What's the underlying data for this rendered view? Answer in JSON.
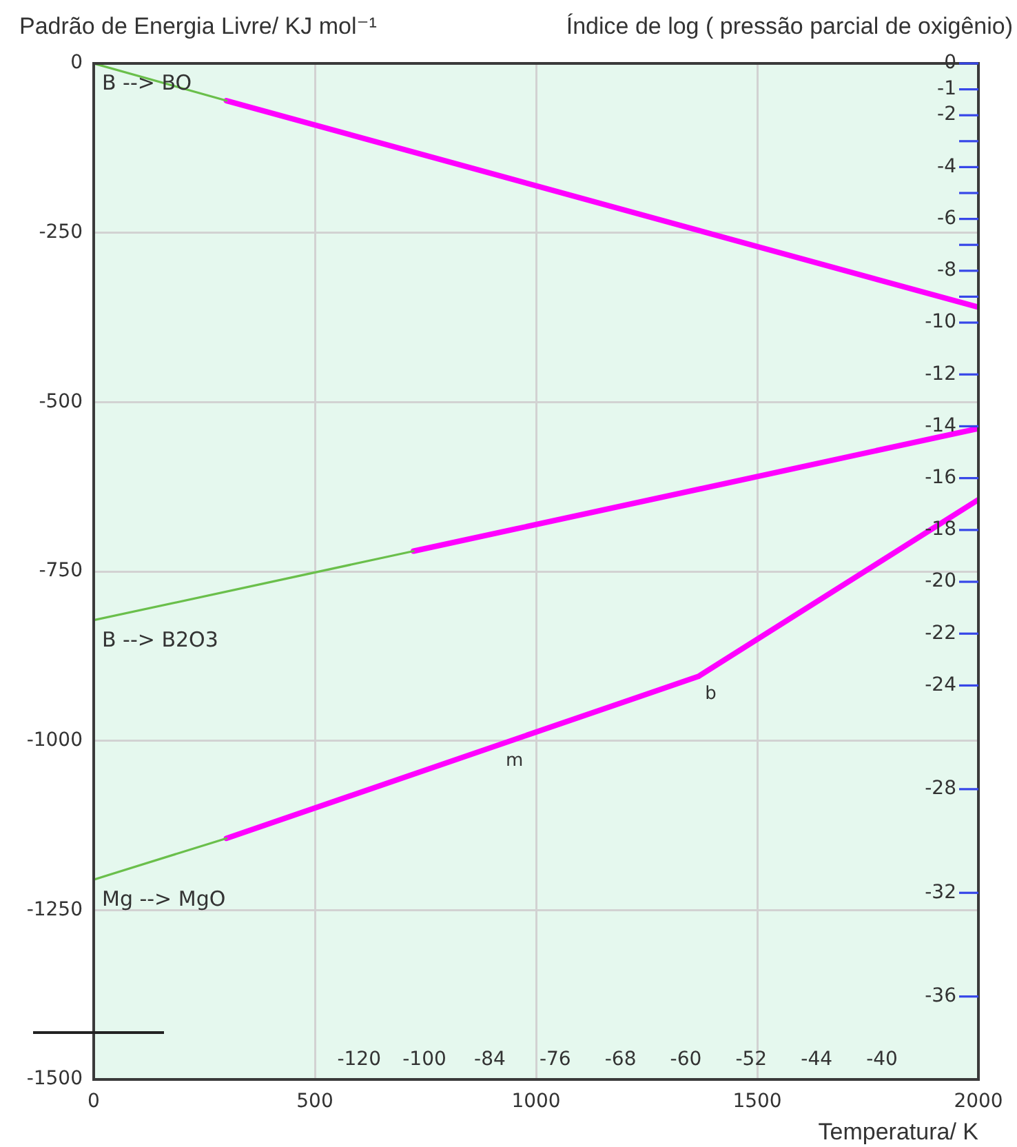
{
  "chart_data": {
    "type": "line",
    "ylabel": "Padrão de Energia Livre/ KJ mol⁻¹",
    "y2label": "Índice de log ( pressão parcial de oxigênio)",
    "xlabel": "Temperatura/ K",
    "xlim": [
      0,
      2000
    ],
    "xticks": [
      0,
      500,
      1000,
      1500,
      2000
    ],
    "ylim": [
      -1500,
      0
    ],
    "yticks": [
      0,
      -250,
      -500,
      -750,
      -1000,
      -1250,
      -1500
    ],
    "y2lim": [
      -39.2,
      0
    ],
    "y2ticks": [
      0,
      -1,
      -2,
      {
        "value": -3,
        "label": null
      },
      -4,
      {
        "value": -5,
        "label": null
      },
      -6,
      {
        "value": -7,
        "label": null
      },
      -8,
      {
        "value": -9,
        "label": null
      },
      -10,
      -12,
      -14,
      -16,
      -18,
      -20,
      -22,
      -24,
      -28,
      -32,
      -36
    ],
    "series": [
      {
        "name": "B --> BO",
        "color": "#6abf4b",
        "x": [
          0,
          300
        ],
        "values": [
          0,
          -55
        ]
      },
      {
        "color": "#ff00ff",
        "x": [
          300,
          2000
        ],
        "values": [
          -55,
          -360
        ]
      },
      {
        "name": "B --> B2O3",
        "color": "#6abf4b",
        "x": [
          0,
          723
        ],
        "values": [
          -822,
          -720
        ]
      },
      {
        "color": "#ff00ff",
        "x": [
          723,
          2000
        ],
        "values": [
          -720,
          -539
        ]
      },
      {
        "name": "Mg --> MgO",
        "color": "#6abf4b",
        "x": [
          0,
          300
        ],
        "values": [
          -1205,
          -1144
        ]
      },
      {
        "color": "#ff00ff",
        "x": [
          300,
          1367,
          2000
        ],
        "values": [
          -1144,
          -905,
          -644
        ]
      }
    ],
    "annotations": [
      {
        "text": "m",
        "x": 923,
        "y": -1004
      },
      {
        "text": "b",
        "x": 1367,
        "y": -905
      },
      "-120",
      "-100",
      "-84",
      "-76",
      "-68",
      "-60",
      "-52",
      "-44",
      "-40"
    ],
    "grid": true
  }
}
